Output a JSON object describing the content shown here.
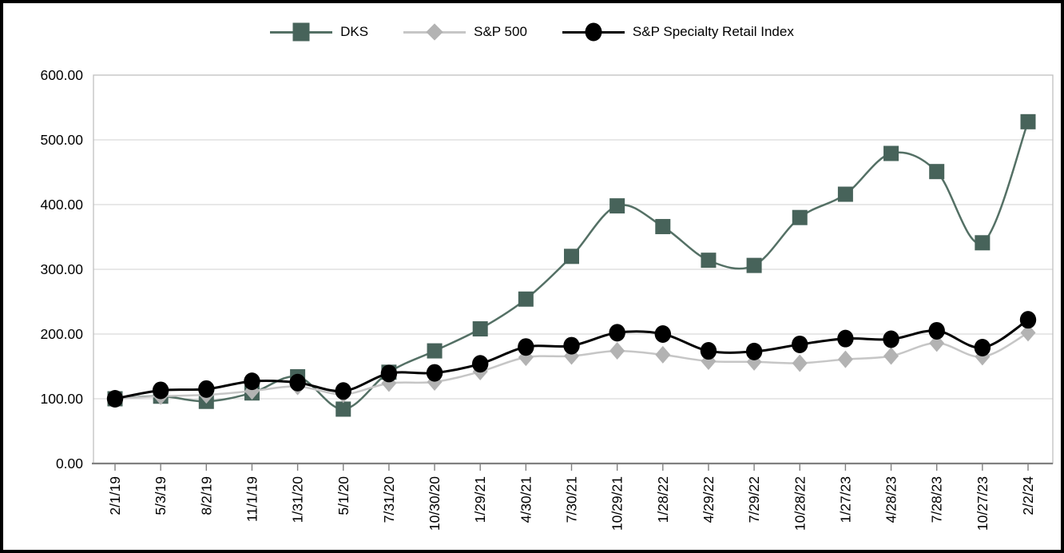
{
  "chart_data": {
    "type": "line",
    "title": "",
    "xlabel": "",
    "ylabel": "",
    "ylim": [
      0,
      600
    ],
    "y_ticks": [
      "0.00",
      "100.00",
      "200.00",
      "300.00",
      "400.00",
      "500.00",
      "600.00"
    ],
    "grid": true,
    "legend_position": "top",
    "smooth_lines": true,
    "categories": [
      "2/1/19",
      "5/3/19",
      "8/2/19",
      "11/1/19",
      "1/31/20",
      "5/1/20",
      "7/31/20",
      "10/30/20",
      "1/29/21",
      "4/30/21",
      "7/30/21",
      "10/29/21",
      "1/28/22",
      "4/29/22",
      "7/29/22",
      "10/28/22",
      "1/27/23",
      "4/28/23",
      "7/28/23",
      "10/27/23",
      "2/2/24"
    ],
    "series": [
      {
        "name": "DKS",
        "marker": "square",
        "marker_color": "#47635a",
        "line_color": "#547065",
        "line_width": 2.5,
        "values": [
          100,
          104,
          96,
          109,
          134,
          84,
          141,
          174,
          208,
          254,
          320,
          398,
          366,
          314,
          306,
          380,
          416,
          479,
          451,
          341,
          528
        ]
      },
      {
        "name": "S&P 500",
        "marker": "diamond",
        "marker_color": "#b3b3b3",
        "line_color": "#c6c6c6",
        "line_width": 2.5,
        "values": [
          100,
          104,
          106,
          112,
          119,
          107,
          124,
          126,
          142,
          164,
          166,
          174,
          168,
          158,
          157,
          155,
          161,
          166,
          186,
          165,
          202
        ]
      },
      {
        "name": "S&P Specialty Retail Index",
        "marker": "circle",
        "marker_color": "#000000",
        "line_color": "#000000",
        "line_width": 3,
        "values": [
          100,
          113,
          115,
          127,
          125,
          112,
          139,
          140,
          154,
          180,
          182,
          202,
          200,
          174,
          173,
          184,
          193,
          192,
          205,
          179,
          222
        ]
      }
    ]
  },
  "colors": {
    "background": "#ffffff",
    "frame_border": "#000000",
    "plot_border": "#bfbfbf",
    "gridline": "#d9d9d9",
    "axis_line": "#808080",
    "tick": "#808080",
    "label_text": "#000000"
  }
}
